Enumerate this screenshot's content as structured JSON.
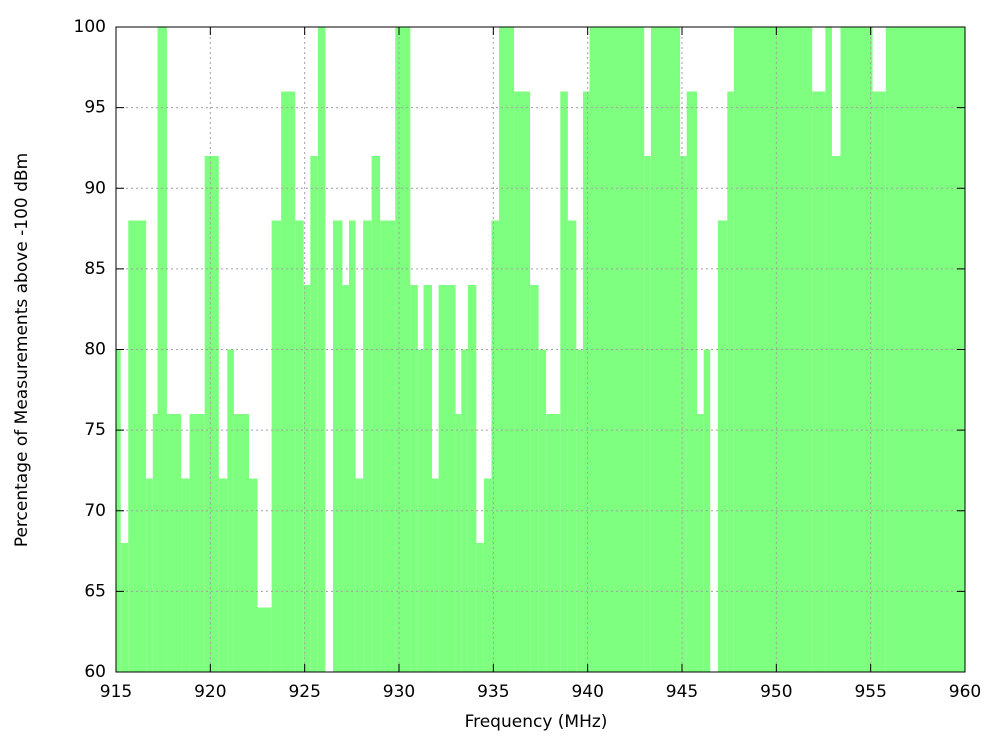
{
  "chart_data": {
    "type": "histogram",
    "xlabel": "Frequency (MHz)",
    "ylabel": "Percentage of Measurements above -100 dBm",
    "bins": [
      915,
      915.25,
      915.65,
      916.6,
      916.95,
      917.2,
      917.7,
      918.45,
      918.9,
      919.7,
      920.45,
      920.9,
      921.25,
      922.05,
      922.5,
      923.25,
      923.75,
      924.5,
      924.95,
      925.3,
      925.7,
      926.1,
      926.5,
      927.0,
      927.35,
      927.7,
      928.1,
      928.55,
      929.0,
      929.8,
      930.6,
      931.0,
      931.3,
      931.75,
      932.1,
      933.0,
      933.3,
      933.65,
      934.1,
      934.5,
      934.9,
      935.3,
      936.1,
      936.95,
      937.4,
      937.8,
      938.55,
      938.95,
      939.4,
      939.75,
      940.1,
      943.0,
      943.35,
      944.9,
      945.25,
      945.8,
      946.15,
      946.5,
      946.9,
      947.4,
      947.75,
      951.9,
      952.6,
      952.95,
      953.4,
      955.1,
      955.8,
      960
    ],
    "values": [
      80,
      68,
      88,
      72,
      76,
      100,
      76,
      72,
      76,
      92,
      72,
      80,
      76,
      72,
      64,
      88,
      96,
      88,
      84,
      92,
      100,
      60,
      88,
      84,
      88,
      72,
      88,
      92,
      88,
      100,
      84,
      80,
      84,
      72,
      84,
      76,
      80,
      84,
      68,
      72,
      88,
      100,
      96,
      84,
      80,
      76,
      96,
      88,
      80,
      96,
      100,
      92,
      100,
      92,
      96,
      76,
      80,
      60,
      88,
      96,
      100,
      96,
      100,
      92,
      100,
      96,
      100
    ],
    "color": "#7fff7f",
    "xlim": [
      915,
      960
    ],
    "xticks": [
      915,
      920,
      925,
      930,
      935,
      940,
      945,
      950,
      955,
      960
    ],
    "ylim": [
      60,
      100
    ],
    "yticks": [
      60,
      65,
      70,
      75,
      80,
      85,
      90,
      95,
      100
    ],
    "grid": true
  }
}
